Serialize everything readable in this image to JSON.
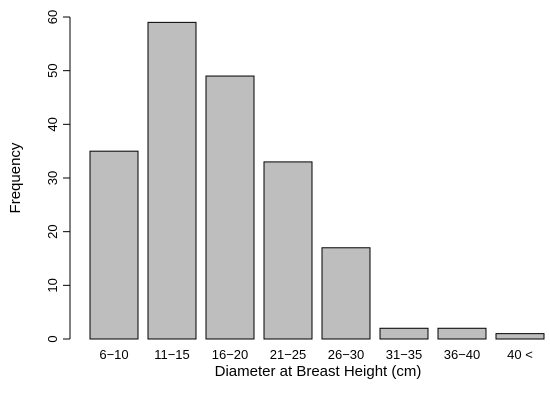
{
  "chart_data": {
    "type": "bar",
    "categories": [
      "6−10",
      "11−15",
      "16−20",
      "21−25",
      "26−30",
      "31−35",
      "36−40",
      "40 <"
    ],
    "values": [
      35,
      59,
      49,
      33,
      17,
      2,
      2,
      1
    ],
    "xlabel": "Diameter at Breast Height (cm)",
    "ylabel": "Frequency",
    "ylim": [
      0,
      60
    ],
    "yticks": [
      0,
      10,
      20,
      30,
      40,
      50,
      60
    ],
    "ytick_labels": [
      "0",
      "10",
      "20",
      "30",
      "40",
      "50",
      "60"
    ],
    "grid": false,
    "bar_color": "#bebebe"
  }
}
